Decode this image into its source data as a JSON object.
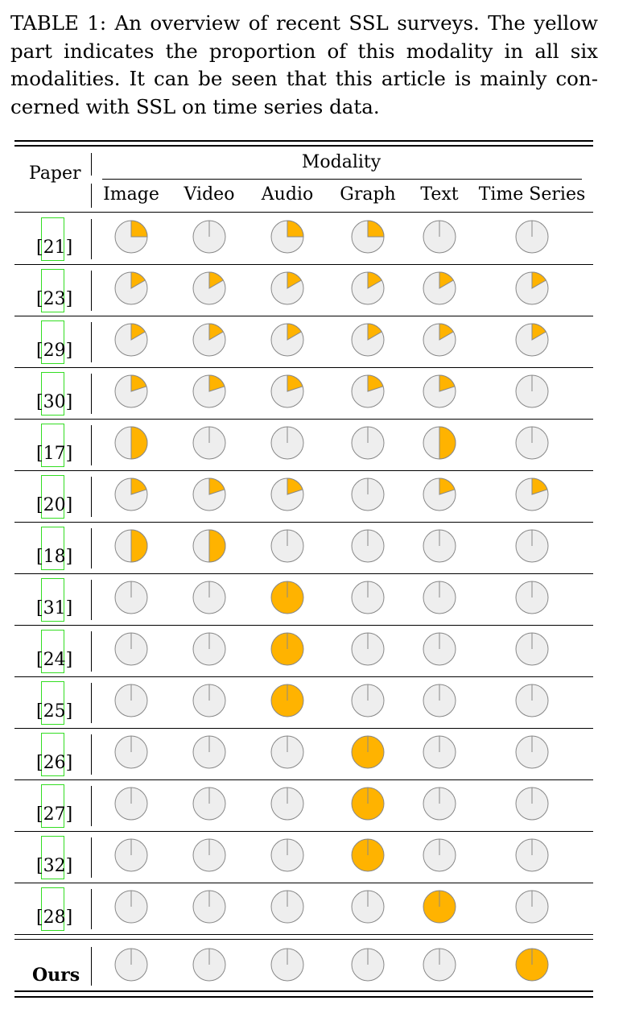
{
  "caption": {
    "lines": [
      "TABLE 1: An overview of recent SSL surveys. The yellow",
      "part indicates the proportion of this modality in all six",
      "modalities. It can be seen that this article is mainly con-",
      "cerned with SSL on time series data."
    ]
  },
  "header": {
    "paper": "Paper",
    "modality": "Modality",
    "columns": [
      "Image",
      "Video",
      "Audio",
      "Graph",
      "Text",
      "Time Series"
    ]
  },
  "colors": {
    "fill": "#FFB300",
    "empty": "#EEEEEE",
    "stroke": "#888888",
    "ref_box": "#33dd22"
  },
  "rows": [
    {
      "paper": "[21]",
      "shares": [
        0.25,
        0,
        0.25,
        0.25,
        0,
        0
      ]
    },
    {
      "paper": "[23]",
      "shares": [
        0.1667,
        0.1667,
        0.1667,
        0.1667,
        0.1667,
        0.1667
      ]
    },
    {
      "paper": "[29]",
      "shares": [
        0.1667,
        0.1667,
        0.1667,
        0.1667,
        0.1667,
        0.1667
      ]
    },
    {
      "paper": "[30]",
      "shares": [
        0.2,
        0.2,
        0.2,
        0.2,
        0.2,
        0
      ]
    },
    {
      "paper": "[17]",
      "shares": [
        0.5,
        0,
        0,
        0,
        0.5,
        0
      ]
    },
    {
      "paper": "[20]",
      "shares": [
        0.2,
        0.2,
        0.2,
        0,
        0.2,
        0.2
      ]
    },
    {
      "paper": "[18]",
      "shares": [
        0.5,
        0.5,
        0,
        0,
        0,
        0
      ]
    },
    {
      "paper": "[31]",
      "shares": [
        0,
        0,
        1,
        0,
        0,
        0
      ]
    },
    {
      "paper": "[24]",
      "shares": [
        0,
        0,
        1,
        0,
        0,
        0
      ]
    },
    {
      "paper": "[25]",
      "shares": [
        0,
        0,
        1,
        0,
        0,
        0
      ]
    },
    {
      "paper": "[26]",
      "shares": [
        0,
        0,
        0,
        1,
        0,
        0
      ]
    },
    {
      "paper": "[27]",
      "shares": [
        0,
        0,
        0,
        1,
        0,
        0
      ]
    },
    {
      "paper": "[32]",
      "shares": [
        0,
        0,
        0,
        1,
        0,
        0
      ]
    },
    {
      "paper": "[28]",
      "shares": [
        0,
        0,
        0,
        0,
        1,
        0
      ]
    }
  ],
  "ours": {
    "paper": "Ours",
    "shares": [
      0,
      0,
      0,
      0,
      0,
      1
    ]
  }
}
